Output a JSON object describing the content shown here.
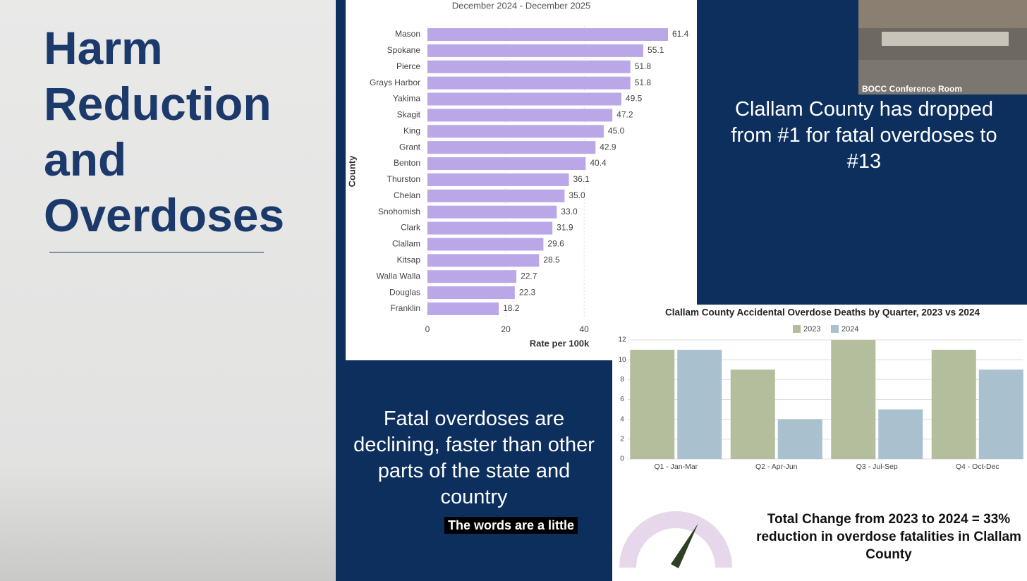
{
  "slide": {
    "title": "Harm Reduction and Overdoses",
    "callout_top": "Clallam County has dropped from #1 for fatal overdoses to #13",
    "callout_bottom": "Fatal overdoses are declining, faster than other parts of the state and country",
    "caption": "The words are a little",
    "summary": "Total Change from 2023 to 2024 = 33% reduction in overdose fatalities in Clallam County",
    "webcam_label": "BOCC Conference Room"
  },
  "chart_data": [
    {
      "type": "hbar",
      "subtitle": "December 2024 - December 2025",
      "categories": [
        "Mason",
        "Spokane",
        "Pierce",
        "Grays Harbor",
        "Yakima",
        "Skagit",
        "King",
        "Grant",
        "Benton",
        "Thurston",
        "Chelan",
        "Snohomish",
        "Clark",
        "Clallam",
        "Kitsap",
        "Walla Walla",
        "Douglas",
        "Franklin"
      ],
      "values": [
        61.4,
        55.1,
        51.8,
        51.8,
        49.5,
        47.2,
        45.0,
        42.9,
        40.4,
        36.1,
        35.0,
        33.0,
        31.9,
        29.6,
        28.5,
        22.7,
        22.3,
        18.2
      ],
      "value_labels": [
        "61.4",
        "55.1",
        "51.8",
        "51.8",
        "49.5",
        "47.2",
        "45.0",
        "42.9",
        "40.4",
        "36.1",
        "35.0",
        "33.0",
        "31.9",
        "29.6",
        "28.5",
        "22.7",
        "22.3",
        "18.2"
      ],
      "color": "#b9a7e8",
      "xlim": [
        0,
        65
      ],
      "xticks": [
        0,
        20,
        40
      ],
      "grid": true,
      "x_label": "Rate per 100k",
      "y_label": "County"
    },
    {
      "type": "bar",
      "title": "Clallam County Accidental Overdose Deaths by Quarter, 2023 vs 2024",
      "categories": [
        "Q1 - Jan-Mar",
        "Q2 - Apr-Jun",
        "Q3 - Jul-Sep",
        "Q4 - Oct-Dec"
      ],
      "series": [
        {
          "name": "2023",
          "color": "#b4bd9c",
          "values": [
            11,
            9,
            12,
            11
          ]
        },
        {
          "name": "2024",
          "color": "#a9c1cf",
          "values": [
            11,
            4,
            5,
            9
          ]
        }
      ],
      "ylim": [
        0,
        12
      ],
      "yticks": [
        0,
        2,
        4,
        6,
        8,
        10,
        12
      ],
      "grid": true,
      "legend": "top"
    }
  ]
}
